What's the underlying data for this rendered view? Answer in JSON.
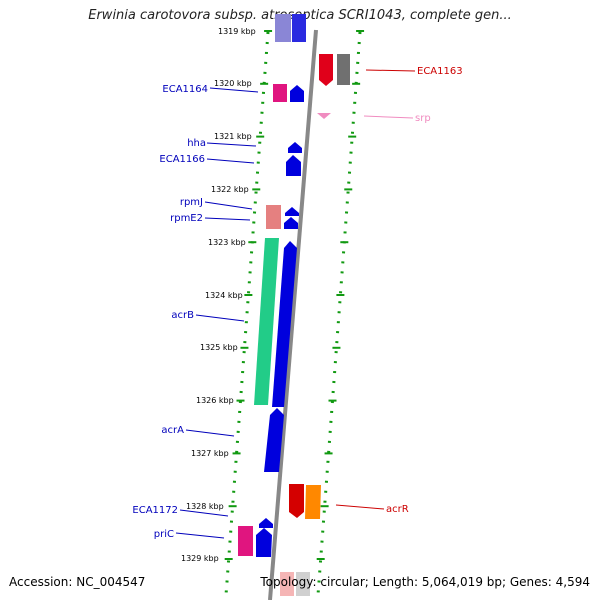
{
  "title": "Erwinia carotovora subsp. atroseptica SCRI1043, complete gen...",
  "footer": {
    "accession": "Accession: NC_004547",
    "summary": "Topology: circular; Length: 5,064,019 bp; Genes: 4,594"
  },
  "scale_labels": [
    "1319 kbp",
    "1320 kbp",
    "1321 kbp",
    "1322 kbp",
    "1323 kbp",
    "1324 kbp",
    "1325 kbp",
    "1326 kbp",
    "1327 kbp",
    "1328 kbp",
    "1329 kbp"
  ],
  "left_genes": [
    {
      "name": "ECA1164",
      "color": "#0000bb"
    },
    {
      "name": "hha",
      "color": "#0000bb"
    },
    {
      "name": "ECA1166",
      "color": "#0000bb"
    },
    {
      "name": "rpmJ",
      "color": "#0000bb"
    },
    {
      "name": "rpmE2",
      "color": "#0000bb"
    },
    {
      "name": "acrB",
      "color": "#0000bb"
    },
    {
      "name": "acrA",
      "color": "#0000bb"
    },
    {
      "name": "ECA1172",
      "color": "#0000bb"
    },
    {
      "name": "priC",
      "color": "#0000bb"
    }
  ],
  "right_genes": [
    {
      "name": "ECA1163",
      "color": "#cc0000"
    },
    {
      "name": "srp",
      "color": "#f08cc0"
    },
    {
      "name": "acrR",
      "color": "#cc0000"
    }
  ]
}
